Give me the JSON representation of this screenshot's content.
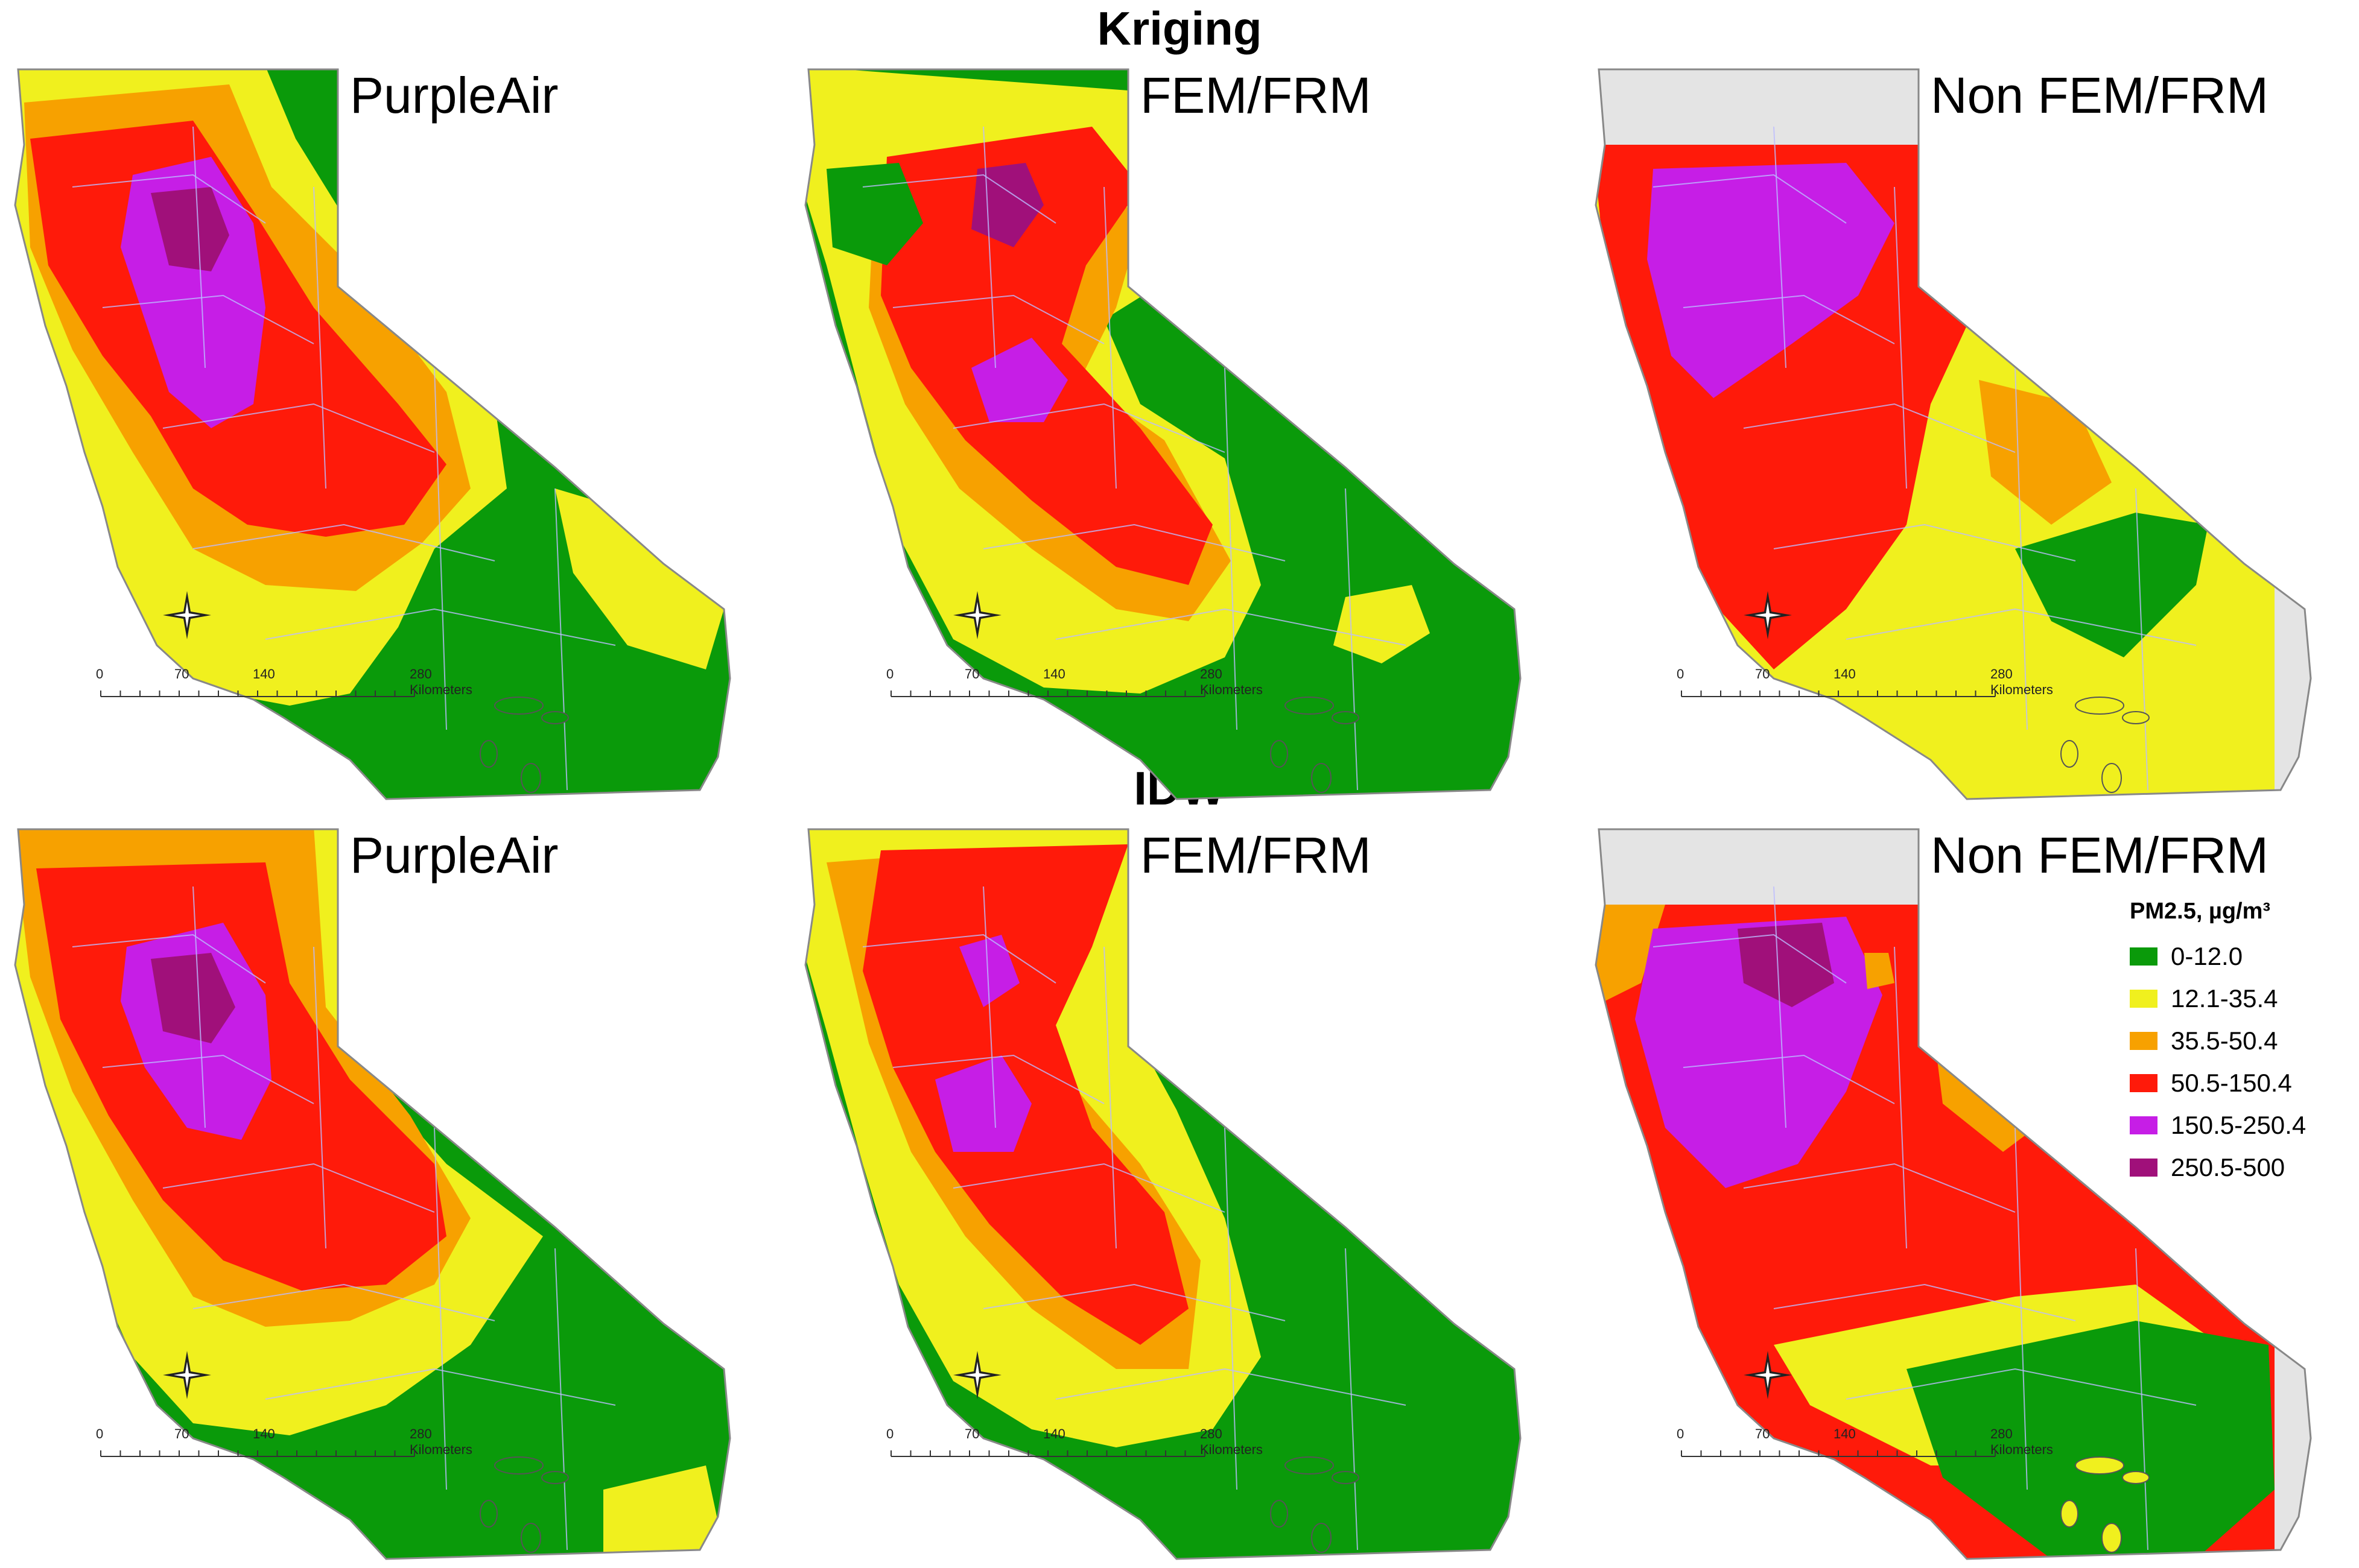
{
  "sections": [
    {
      "title": "Kriging"
    },
    {
      "title": "IDW"
    }
  ],
  "panels": [
    {
      "label": "PurpleAir",
      "scheme": "pa_krig"
    },
    {
      "label": "FEM/FRM",
      "scheme": "fem_krig"
    },
    {
      "label": "Non FEM/FRM",
      "scheme": "non_krig"
    },
    {
      "label": "PurpleAir",
      "scheme": "pa_idw"
    },
    {
      "label": "FEM/FRM",
      "scheme": "fem_idw"
    },
    {
      "label": "Non FEM/FRM",
      "scheme": "non_idw"
    }
  ],
  "scalebar": {
    "ticks": [
      "0",
      "70",
      "140",
      "280 Kilometers"
    ]
  },
  "legend": {
    "title": "PM2.5, µg/m³",
    "items": [
      {
        "label": "0-12.0",
        "color": "#0a9a0a"
      },
      {
        "label": "12.1-35.4",
        "color": "#f0f01e"
      },
      {
        "label": "35.5-50.4",
        "color": "#f7a100"
      },
      {
        "label": "50.5-150.4",
        "color": "#ff1a0a"
      },
      {
        "label": "150.5-250.4",
        "color": "#c61ee6"
      },
      {
        "label": "250.5-500",
        "color": "#a0107a"
      }
    ]
  },
  "colors": {
    "nodata": "#e4e4e4",
    "outline": "#888888",
    "county_lines": "#bcbcff"
  }
}
